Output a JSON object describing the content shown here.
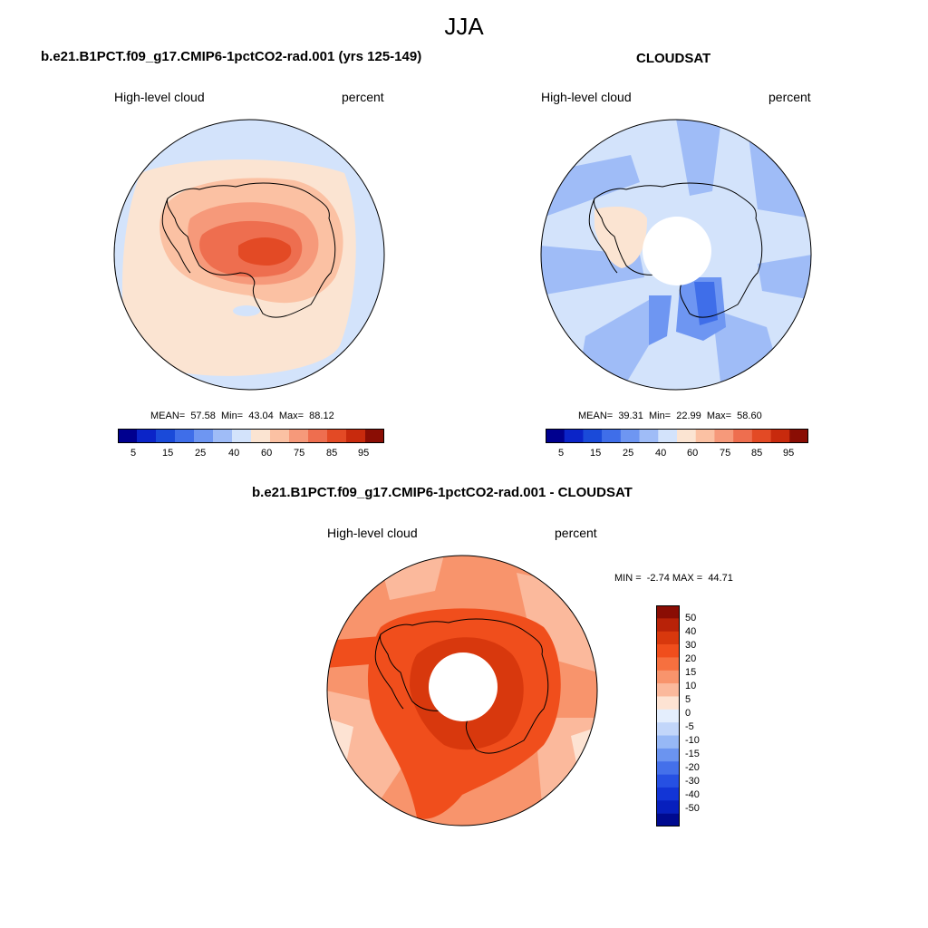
{
  "page": {
    "season_title": "JJA"
  },
  "panels": {
    "model": {
      "title": "b.e21.B1PCT.f09_g17.CMIP6-1pctCO2-rad.001 (yrs 125-149)",
      "variable": "High-level cloud",
      "units": "percent",
      "stats": "MEAN=  57.58  Min=  43.04  Max=  88.12"
    },
    "obs": {
      "title": "CLOUDSAT",
      "variable": "High-level cloud",
      "units": "percent",
      "stats": "MEAN=  39.31  Min=  22.99  Max=  58.60"
    },
    "diff": {
      "title": "b.e21.B1PCT.f09_g17.CMIP6-1pctCO2-rad.001 - CLOUDSAT",
      "variable": "High-level cloud",
      "units": "percent",
      "stats": "MIN =  -2.74 MAX =  44.71"
    }
  },
  "colorbars": {
    "abs": {
      "colors": [
        "#00008f",
        "#0b24c8",
        "#1a4ad9",
        "#3f6ee9",
        "#6e96f2",
        "#9fbcf7",
        "#d3e3fb",
        "#fbe4d2",
        "#fbc1a3",
        "#f6997a",
        "#ee6e4f",
        "#e34a25",
        "#c82a0d",
        "#8a0d04"
      ],
      "tick_labels": [
        "5",
        "15",
        "25",
        "40",
        "60",
        "75",
        "85",
        "95"
      ]
    },
    "diff": {
      "colors": [
        "#8a0d04",
        "#b82208",
        "#d8380d",
        "#f04e1c",
        "#f6703f",
        "#f8946c",
        "#fbb99c",
        "#fde3d3",
        "#e4eefd",
        "#c2d6fa",
        "#97b8f6",
        "#6b94f0",
        "#4470ea",
        "#2650e3",
        "#1235d6",
        "#071fbd",
        "#000a8f"
      ],
      "tick_labels": [
        "50",
        "40",
        "30",
        "20",
        "15",
        "10",
        "5",
        "0",
        "-5",
        "-10",
        "-15",
        "-20",
        "-30",
        "-40",
        "-50"
      ]
    }
  },
  "map_data": {
    "projection": "south polar stereographic",
    "region": "Antarctica / Southern Ocean",
    "model_field_colors": {
      "ocean": "#fbe4d2",
      "interior_low": "#fbc1a3",
      "interior_mid": "#f6997a",
      "interior_high": "#ee6e4f",
      "peak": "#e34a25",
      "periphery": "#d3e3fb"
    },
    "obs_field_colors": {
      "background": "#d3e3fb",
      "streak": "#9fbcf7",
      "dark_streak": "#6e96f2",
      "core": "#3f6ee9",
      "peninsula": "#fbe4d2"
    },
    "diff_field_colors": {
      "background": "#f8946c",
      "lighter": "#fbb99c",
      "ring": "#f04e1c",
      "core": "#d8380d",
      "peripheral": "#fde3d3"
    }
  }
}
